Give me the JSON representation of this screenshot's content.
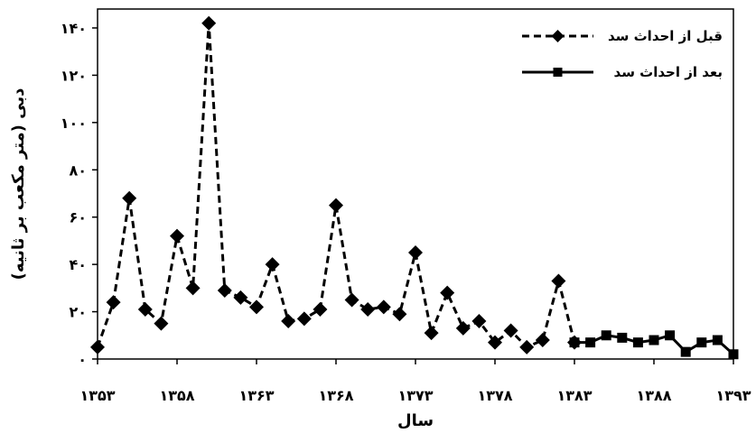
{
  "chart_data": {
    "type": "line",
    "xlabel": "سال",
    "ylabel": "دبی (متر مکعب بر ثانیه)",
    "xlim": [
      1353,
      1393
    ],
    "ylim": [
      0,
      148
    ],
    "x_ticks": [
      1353,
      1358,
      1363,
      1368,
      1373,
      1378,
      1383,
      1388,
      1393
    ],
    "x_tick_labels": [
      "۱۳۵۳",
      "۱۳۵۸",
      "۱۳۶۳",
      "۱۳۶۸",
      "۱۳۷۳",
      "۱۳۷۸",
      "۱۳۸۳",
      "۱۳۸۸",
      "۱۳۹۳"
    ],
    "y_ticks": [
      0,
      20,
      40,
      60,
      80,
      100,
      120,
      140
    ],
    "y_tick_labels": [
      "۰",
      "۲۰",
      "۴۰",
      "۶۰",
      "۸۰",
      "۱۰۰",
      "۱۲۰",
      "۱۴۰"
    ],
    "grid": false,
    "legend_position": "top-right",
    "series": [
      {
        "name": "قبل از احداث سد",
        "style": "dashed",
        "marker": "diamond",
        "color": "#000000",
        "x": [
          1353,
          1354,
          1355,
          1356,
          1357,
          1358,
          1359,
          1360,
          1361,
          1362,
          1363,
          1364,
          1365,
          1366,
          1367,
          1368,
          1369,
          1370,
          1371,
          1372,
          1373,
          1374,
          1375,
          1376,
          1377,
          1378,
          1379,
          1380,
          1381,
          1382,
          1383
        ],
        "y": [
          5,
          24,
          68,
          21,
          15,
          52,
          30,
          142,
          29,
          26,
          22,
          40,
          16,
          17,
          21,
          65,
          25,
          21,
          22,
          19,
          45,
          11,
          28,
          13,
          16,
          7,
          12,
          5,
          8,
          33,
          7
        ]
      },
      {
        "name": "بعد از احداث سد",
        "style": "solid",
        "marker": "square",
        "color": "#000000",
        "x": [
          1383,
          1384,
          1385,
          1386,
          1387,
          1388,
          1389,
          1390,
          1391,
          1392,
          1393
        ],
        "y": [
          7,
          7,
          10,
          9,
          7,
          8,
          10,
          3,
          7,
          8,
          2
        ]
      }
    ]
  }
}
